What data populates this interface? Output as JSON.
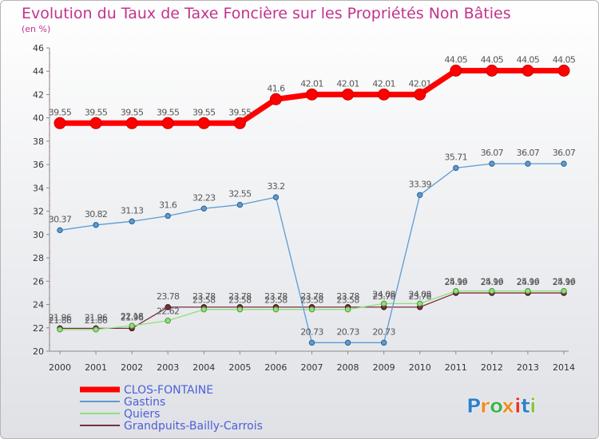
{
  "chart_data": {
    "type": "line",
    "title": "Evolution du Taux de Taxe Foncière sur les Propriétés Non Bâties",
    "subtitle": "(en %)",
    "xlabel": "",
    "ylabel": "",
    "ylim": [
      20,
      46
    ],
    "yticks": [
      "20",
      "22",
      "24",
      "26",
      "28",
      "30",
      "32",
      "34",
      "36",
      "38",
      "40",
      "42",
      "44",
      "46"
    ],
    "x": [
      "2000",
      "2001",
      "2002",
      "2003",
      "2004",
      "2005",
      "2006",
      "2007",
      "2008",
      "2009",
      "2010",
      "2011",
      "2012",
      "2013",
      "2014"
    ],
    "grid": false,
    "legend_position": "bottom-left",
    "series": [
      {
        "name": "CLOS-FONTAINE",
        "color": "#ff0000",
        "values": [
          39.55,
          39.55,
          39.55,
          39.55,
          39.55,
          39.55,
          41.6,
          42.01,
          42.01,
          42.01,
          42.01,
          44.05,
          44.05,
          44.05,
          44.05
        ],
        "labels": [
          "39.55",
          "39.55",
          "39.55",
          "39.55",
          "39.55",
          "39.55",
          "41.6",
          "42.01",
          "42.01",
          "42.01",
          "42.01",
          "44.05",
          "44.05",
          "44.05",
          "44.05"
        ]
      },
      {
        "name": "Gastins",
        "color": "#5b9bd5",
        "values": [
          30.37,
          30.82,
          31.13,
          31.6,
          32.23,
          32.55,
          33.2,
          20.73,
          20.73,
          20.73,
          33.39,
          35.71,
          36.07,
          36.07,
          36.07
        ],
        "labels": [
          "30.37",
          "30.82",
          "31.13",
          "31.6",
          "32.23",
          "32.55",
          "33.2",
          "20.73",
          "20.73",
          "20.73",
          "33.39",
          "35.71",
          "36.07",
          "36.07",
          "36.07"
        ]
      },
      {
        "name": "Quiers",
        "color": "#8fe07a",
        "values": [
          21.86,
          21.86,
          22.18,
          22.62,
          23.58,
          23.58,
          23.58,
          23.58,
          23.58,
          24.08,
          24.08,
          25.16,
          25.16,
          25.16,
          25.16
        ],
        "labels": [
          "21.86",
          "21.86",
          "22.18",
          "22.62",
          "23.58",
          "23.58",
          "23.58",
          "23.58",
          "23.58",
          "24.08",
          "24.08",
          "25.16",
          "25.16",
          "25.16",
          "25.16"
        ]
      },
      {
        "name": "Grandpuits-Bailly-Carrois",
        "color": "#7a2e3c",
        "values": [
          21.96,
          21.96,
          21.96,
          23.78,
          23.78,
          23.78,
          23.78,
          23.78,
          23.78,
          23.78,
          23.78,
          24.99,
          24.99,
          24.99,
          24.99
        ],
        "labels": [
          "21.96",
          "21.96",
          "21.96",
          "23.78",
          "23.78",
          "23.78",
          "23.78",
          "23.78",
          "23.78",
          "23.78",
          "23.78",
          "24.99",
          "24.99",
          "24.99",
          "24.99"
        ]
      }
    ]
  },
  "brand": {
    "logo_text": "Proxiti",
    "letters": [
      "P",
      "r",
      "o",
      "x",
      "i",
      "t",
      "i"
    ],
    "letter_colors": [
      "#2f7fc8",
      "#f08a24",
      "#3fb34f",
      "#f08a24",
      "#e5352b",
      "#2f7fc8",
      "#8ac53f"
    ]
  }
}
